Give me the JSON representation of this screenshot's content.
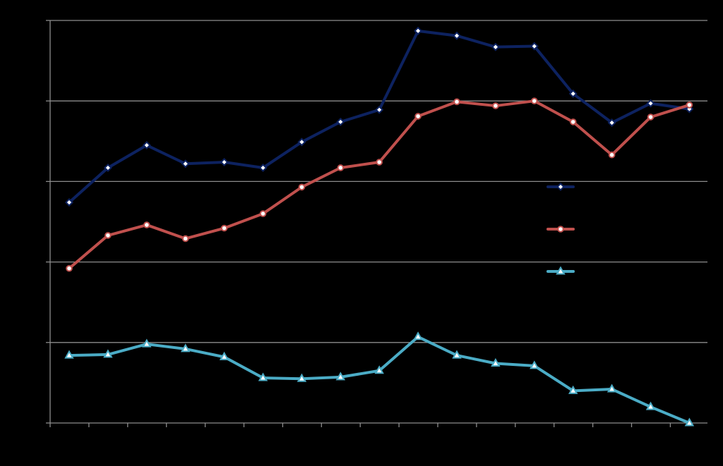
{
  "chart_data": {
    "type": "line",
    "title": "",
    "xlabel": "",
    "ylabel": "",
    "ylim": [
      0,
      5
    ],
    "grid": true,
    "legend_position": "right",
    "x": [
      1,
      2,
      3,
      4,
      5,
      6,
      7,
      8,
      9,
      10,
      11,
      12,
      13,
      14,
      15,
      16,
      17
    ],
    "series": [
      {
        "color": "#0d2260",
        "marker": "diamond",
        "values": [
          2.74,
          3.17,
          3.45,
          3.22,
          3.24,
          3.17,
          3.49,
          3.74,
          3.89,
          4.87,
          4.81,
          4.67,
          4.68,
          4.09,
          3.73,
          3.97,
          3.9
        ]
      },
      {
        "color": "#c0504d",
        "marker": "circle",
        "values": [
          1.92,
          2.33,
          2.46,
          2.29,
          2.42,
          2.6,
          2.93,
          3.17,
          3.24,
          3.81,
          3.99,
          3.94,
          4.0,
          3.74,
          3.33,
          3.8,
          3.95
        ]
      },
      {
        "color": "#4bacc6",
        "marker": "triangle",
        "values": [
          0.84,
          0.85,
          0.98,
          0.92,
          0.82,
          0.56,
          0.55,
          0.57,
          0.65,
          1.07,
          0.84,
          0.74,
          0.71,
          0.4,
          0.42,
          0.2,
          0.0
        ]
      }
    ]
  }
}
